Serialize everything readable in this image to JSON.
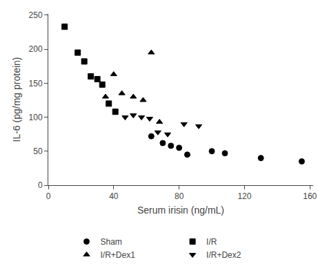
{
  "chart_data": {
    "type": "scatter",
    "xlabel": "Serum irisin (ng/mL)",
    "ylabel": "IL-6 (pg/mg protein)",
    "xlim": [
      0,
      162
    ],
    "ylim": [
      0,
      252
    ],
    "xticks": [
      0,
      40,
      80,
      120,
      160
    ],
    "yticks": [
      0,
      50,
      100,
      150,
      200,
      250
    ],
    "color": "#000000",
    "grid": false,
    "legend": "bottom",
    "series": [
      {
        "name": "Sham",
        "marker": "circle",
        "x": [
          63,
          70,
          75,
          80,
          85,
          100,
          108,
          130,
          155
        ],
        "values": [
          72,
          62,
          58,
          55,
          45,
          50,
          47,
          40,
          35
        ]
      },
      {
        "name": "I/R",
        "marker": "square",
        "x": [
          10,
          18,
          22,
          26,
          30,
          33,
          37,
          41
        ],
        "values": [
          233,
          195,
          182,
          160,
          156,
          148,
          120,
          108
        ]
      },
      {
        "name": "I/R+Dex1",
        "marker": "triangle-up",
        "x": [
          35,
          40,
          45,
          52,
          58,
          63,
          68
        ],
        "values": [
          130,
          163,
          135,
          130,
          125,
          195,
          93
        ]
      },
      {
        "name": "I/R+Dex2",
        "marker": "triangle-down",
        "x": [
          47,
          52,
          57,
          62,
          67,
          73,
          83,
          92
        ],
        "values": [
          100,
          103,
          100,
          98,
          78,
          75,
          90,
          87
        ]
      }
    ]
  }
}
